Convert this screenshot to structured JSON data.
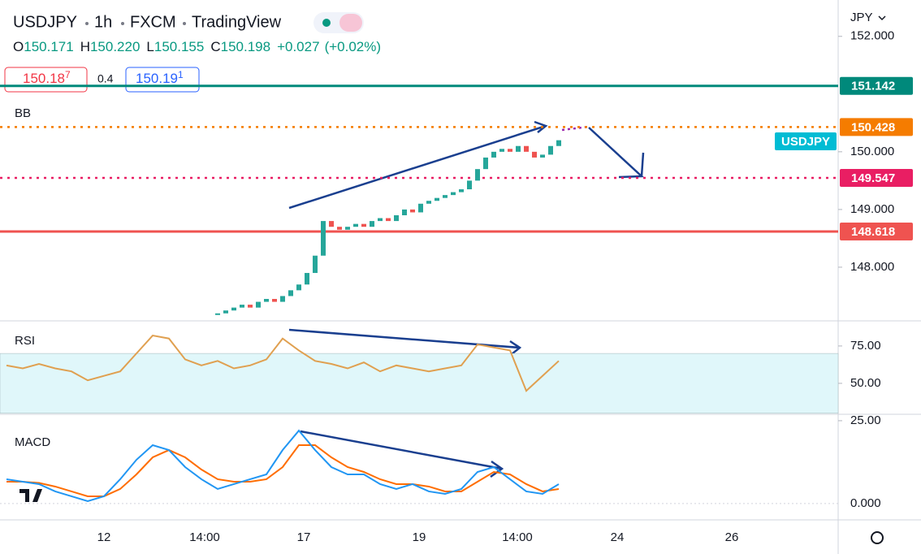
{
  "header": {
    "symbol": "USDJPY",
    "interval": "1h",
    "source": "FXCM",
    "platform": "TradingView",
    "ohlc": [
      {
        "label": "O",
        "value": "150.171"
      },
      {
        "label": "H",
        "value": "150.220"
      },
      {
        "label": "L",
        "value": "150.155"
      },
      {
        "label": "C",
        "value": "150.198"
      }
    ],
    "change": "+0.027",
    "change_pct": "(+0.02%)"
  },
  "trade": {
    "sell": "150.18",
    "sell_pip": "7",
    "spread": "0.4",
    "buy": "150.19",
    "buy_pip": "1"
  },
  "price_pane": {
    "label": "BB",
    "currency": "JPY",
    "symbol_tag": "USDJPY",
    "ylim": [
      147.07,
      152.63
    ],
    "yticks": [
      {
        "value": 152,
        "label": "152.000"
      },
      {
        "value": 150,
        "label": "150.000"
      },
      {
        "value": 149,
        "label": "149.000"
      },
      {
        "value": 148,
        "label": "148.000"
      }
    ],
    "levels": [
      {
        "value": 151.142,
        "color": "#00897b",
        "line": "solid"
      },
      {
        "value": 150.428,
        "color": "#f57c00",
        "line": "dotted"
      },
      {
        "value": 149.547,
        "color": "#e91e63",
        "line": "dotted"
      },
      {
        "value": 148.618,
        "color": "#ef5350",
        "line": "solid"
      }
    ],
    "closes": [
      147.2,
      147.25,
      147.3,
      147.35,
      147.3,
      147.4,
      147.45,
      147.4,
      147.5,
      147.6,
      147.7,
      147.9,
      148.2,
      148.8,
      148.7,
      148.65,
      148.7,
      148.75,
      148.7,
      148.8,
      148.85,
      148.8,
      148.9,
      149.0,
      148.95,
      149.1,
      149.15,
      149.2,
      149.25,
      149.3,
      149.35,
      149.5,
      149.7,
      149.9,
      150.0,
      150.05,
      150.0,
      150.1,
      150.0,
      149.9,
      149.95,
      150.1,
      150.2
    ]
  },
  "rsi_pane": {
    "label": "RSI",
    "ylim": [
      29.3,
      91.8
    ],
    "band": [
      30,
      70
    ],
    "color": "#e0a050",
    "yticks": [
      {
        "value": 75,
        "label": "75.00"
      },
      {
        "value": 50,
        "label": "50.00"
      },
      {
        "value": 25,
        "label": "25.00"
      }
    ],
    "values": [
      62,
      60,
      63,
      60,
      58,
      52,
      55,
      58,
      70,
      82,
      80,
      66,
      62,
      65,
      60,
      62,
      66,
      80,
      72,
      65,
      63,
      60,
      64,
      58,
      62,
      60,
      58,
      60,
      62,
      76,
      74,
      72,
      45,
      55,
      65
    ]
  },
  "macd_pane": {
    "label": "MACD",
    "ylim": [
      -0.067,
      0.367
    ],
    "yticks": [
      {
        "value": 0,
        "label": "0.000"
      }
    ],
    "macd": {
      "color": "#2196f3",
      "values": [
        0.1,
        0.09,
        0.08,
        0.05,
        0.03,
        0.01,
        0.03,
        0.1,
        0.18,
        0.24,
        0.22,
        0.15,
        0.1,
        0.06,
        0.08,
        0.1,
        0.12,
        0.22,
        0.3,
        0.22,
        0.15,
        0.12,
        0.12,
        0.08,
        0.06,
        0.08,
        0.05,
        0.04,
        0.06,
        0.13,
        0.15,
        0.1,
        0.05,
        0.04,
        0.08
      ]
    },
    "signal": {
      "color": "#ff6d00",
      "values": [
        0.09,
        0.09,
        0.085,
        0.07,
        0.05,
        0.03,
        0.03,
        0.06,
        0.12,
        0.19,
        0.22,
        0.19,
        0.14,
        0.1,
        0.09,
        0.09,
        0.1,
        0.15,
        0.24,
        0.24,
        0.19,
        0.15,
        0.13,
        0.1,
        0.08,
        0.08,
        0.07,
        0.05,
        0.05,
        0.09,
        0.13,
        0.12,
        0.08,
        0.05,
        0.06
      ]
    }
  },
  "time_axis": [
    "12",
    "14:00",
    "17",
    "19",
    "14:00",
    "24",
    "26"
  ]
}
